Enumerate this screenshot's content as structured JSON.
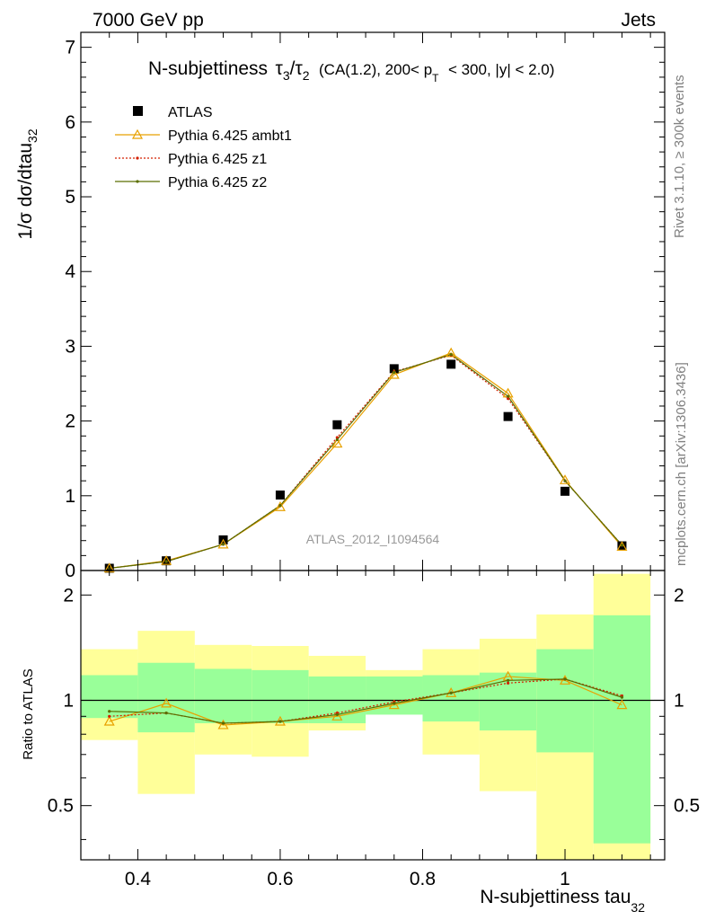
{
  "header": {
    "left": "7000 GeV pp",
    "right": "Jets"
  },
  "side": {
    "rivet": "Rivet 3.1.10, ≥ 300k events",
    "mcplots": "mcplots.cern.ch [arXiv:1306.3436]"
  },
  "colors": {
    "atlas": "#000000",
    "ambt1": "#e8a100",
    "z1": "#d42000",
    "z2": "#5a6e00",
    "band_inner": "#99ff99",
    "band_outer": "#ffff99"
  },
  "chart_data": [
    {
      "type": "scatter",
      "title": "N-subjettiness τ₃/τ₂ (CA(1.2), 200< p_T < 300, |y| < 2.0)",
      "title_parts": {
        "main": "N-subjettiness",
        "tau3": "τ",
        "sub3": "3",
        "slash": "/",
        "tau2": "τ",
        "sub2": "2",
        "cond1": "(CA(1.2), 200< p",
        "subT": "T",
        "cond2": "< 300, |y| < 2.0)"
      },
      "ylabel": "1/σ dσ/dtau",
      "ylabel_sub": "32",
      "xlim": [
        0.32,
        1.14
      ],
      "ylim": [
        0,
        7.2
      ],
      "yticks": [
        0,
        1,
        2,
        3,
        4,
        5,
        6,
        7
      ],
      "watermark": "ATLAS_2012_I1094564",
      "legend_position": "top-left",
      "x": [
        0.36,
        0.44,
        0.52,
        0.6,
        0.68,
        0.76,
        0.84,
        0.92,
        1.0,
        1.08
      ],
      "series": [
        {
          "name": "ATLAS",
          "marker": "square",
          "values": [
            0.03,
            0.13,
            0.41,
            1.01,
            1.95,
            2.7,
            2.76,
            2.06,
            1.06,
            0.33
          ]
        },
        {
          "name": "Pythia 6.425 ambt1",
          "marker": "triangle",
          "values": [
            0.03,
            0.13,
            0.35,
            0.85,
            1.7,
            2.62,
            2.91,
            2.37,
            1.21,
            0.32
          ]
        },
        {
          "name": "Pythia 6.425 z1",
          "marker": "dot",
          "values": [
            0.03,
            0.12,
            0.35,
            0.87,
            1.78,
            2.66,
            2.88,
            2.3,
            1.2,
            0.34
          ]
        },
        {
          "name": "Pythia 6.425 z2",
          "marker": "dot",
          "values": [
            0.03,
            0.12,
            0.35,
            0.87,
            1.75,
            2.65,
            2.89,
            2.33,
            1.2,
            0.34
          ]
        }
      ]
    },
    {
      "type": "line",
      "ylabel": "Ratio to ATLAS",
      "xlabel": "N-subjettiness tau",
      "xlabel_sub": "32",
      "xlim": [
        0.32,
        1.14
      ],
      "ylim": [
        0.35,
        2.35
      ],
      "yticks": [
        0.5,
        1,
        2
      ],
      "ytick_labels": [
        "0.5",
        "1",
        "2"
      ],
      "xticks": [
        0.4,
        0.6,
        0.8,
        1.0
      ],
      "xtick_labels": [
        "0.4",
        "0.6",
        "0.8",
        "1"
      ],
      "bins": [
        0.32,
        0.4,
        0.48,
        0.56,
        0.64,
        0.72,
        0.8,
        0.88,
        0.96,
        1.04,
        1.12
      ],
      "band_inner": [
        [
          0.89,
          1.18
        ],
        [
          0.81,
          1.28
        ],
        [
          0.86,
          1.23
        ],
        [
          0.86,
          1.22
        ],
        [
          0.86,
          1.17
        ],
        [
          0.91,
          1.17
        ],
        [
          0.87,
          1.18
        ],
        [
          0.82,
          1.2
        ],
        [
          0.71,
          1.4
        ],
        [
          0.39,
          1.75
        ]
      ],
      "band_outer": [
        [
          0.77,
          1.4
        ],
        [
          0.54,
          1.58
        ],
        [
          0.7,
          1.44
        ],
        [
          0.69,
          1.43
        ],
        [
          0.82,
          1.34
        ],
        [
          0.93,
          1.22
        ],
        [
          0.7,
          1.4
        ],
        [
          0.55,
          1.5
        ],
        [
          0.35,
          1.76
        ],
        [
          0.35,
          2.3
        ]
      ],
      "x": [
        0.36,
        0.44,
        0.52,
        0.6,
        0.68,
        0.76,
        0.84,
        0.92,
        1.0,
        1.08
      ],
      "series": [
        {
          "name": "Pythia 6.425 ambt1",
          "values": [
            0.87,
            0.98,
            0.85,
            0.87,
            0.9,
            0.97,
            1.05,
            1.17,
            1.14,
            0.97
          ]
        },
        {
          "name": "Pythia 6.425 z1",
          "values": [
            0.9,
            0.92,
            0.86,
            0.87,
            0.92,
            0.99,
            1.05,
            1.12,
            1.15,
            1.03
          ]
        },
        {
          "name": "Pythia 6.425 z2",
          "values": [
            0.93,
            0.92,
            0.86,
            0.87,
            0.91,
            0.98,
            1.05,
            1.14,
            1.15,
            1.02
          ]
        }
      ]
    }
  ]
}
